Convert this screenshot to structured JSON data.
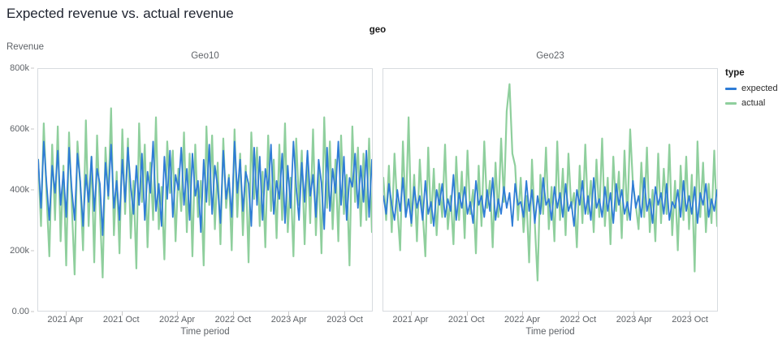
{
  "page": {
    "title": "Expected revenue vs. actual revenue"
  },
  "chart": {
    "facet_field": "geo",
    "y_axis_title": "Revenue",
    "x_axis_title": "Time period",
    "y_ticks": [
      "800k",
      "600k",
      "400k",
      "200k",
      "0.00"
    ],
    "legend": {
      "title": "type",
      "items": [
        {
          "label": "expected",
          "color": "#2e7cd6"
        },
        {
          "label": "actual",
          "color": "#8fcf9d"
        }
      ]
    }
  },
  "chart_data": {
    "type": "line",
    "title": "Expected revenue vs. actual revenue",
    "xlabel": "Time period",
    "ylabel": "Revenue",
    "ylim": [
      0,
      800000
    ],
    "values_unit": "thousands",
    "x_start": "2021-01",
    "x_end": "2023-12",
    "x_domain_months": 36,
    "x_tick_months": [
      3,
      9,
      15,
      21,
      27,
      33
    ],
    "x_tick_labels": [
      "2021 Apr",
      "2021 Oct",
      "2022 Apr",
      "2022 Oct",
      "2023 Apr",
      "2023 Oct"
    ],
    "grid": false,
    "legend_position": "right",
    "facets": [
      {
        "name": "Geo10",
        "series": [
          {
            "name": "expected",
            "color": "#2e7cd6",
            "width": 1.8,
            "values": [
              500,
              340,
              560,
              420,
              300,
              480,
              390,
              530,
              350,
              460,
              310,
              540,
              400,
              300,
              520,
              430,
              280,
              450,
              360,
              510,
              330,
              470,
              420,
              250,
              490,
              380,
              550,
              340,
              430,
              300,
              500,
              360,
              540,
              410,
              320,
              480,
              350,
              520,
              300,
              460,
              390,
              560,
              330,
              420,
              280,
              510,
              370,
              530,
              310,
              450,
              400,
              540,
              350,
              470,
              300,
              520,
              380,
              430,
              260,
              500,
              360,
              550,
              320,
              480,
              410,
              290,
              530,
              370,
              440,
              310,
              560,
              390,
              500,
              330,
              460,
              420,
              280,
              540,
              350,
              510,
              300,
              470,
              400,
              550,
              320,
              430,
              370,
              520,
              290,
              480,
              340,
              560,
              410,
              300,
              490,
              360,
              530,
              380,
              450,
              310,
              500,
              420,
              270,
              540,
              330,
              470,
              390,
              560,
              350,
              510,
              300,
              440,
              410,
              520,
              340,
              480,
              360,
              530,
              310,
              500
            ]
          },
          {
            "name": "actual",
            "color": "#8fcf9d",
            "width": 2.2,
            "values": [
              500,
              280,
              620,
              380,
              180,
              550,
              300,
              610,
              230,
              480,
              150,
              590,
              350,
              120,
              560,
              420,
              200,
              630,
              280,
              510,
              160,
              580,
              330,
              110,
              540,
              370,
              670,
              250,
              460,
              190,
              600,
              320,
              570,
              240,
              430,
              140,
              620,
              360,
              550,
              210,
              490,
              300,
              640,
              270,
              410,
              170,
              560,
              390,
              530,
              230,
              470,
              330,
              590,
              260,
              520,
              180,
              550,
              310,
              430,
              150,
              610,
              350,
              580,
              270,
              490,
              220,
              570,
              340,
              450,
              200,
              600,
              310,
              520,
              250,
              480,
              160,
              590,
              370,
              540,
              280,
              460,
              210,
              580,
              330,
              500,
              240,
              550,
              300,
              620,
              260,
              440,
              180,
              570,
              350,
              530,
              220,
              510,
              290,
              600,
              250,
              470,
              190,
              640,
              340,
              560,
              270,
              500,
              230,
              580,
              320,
              450,
              150,
              610,
              360,
              540,
              280,
              520,
              300,
              570,
              260
            ]
          }
        ]
      },
      {
        "name": "Geo23",
        "series": [
          {
            "name": "expected",
            "color": "#2e7cd6",
            "width": 1.8,
            "values": [
              380,
              320,
              420,
              350,
              300,
              400,
              330,
              440,
              310,
              370,
              290,
              410,
              340,
              380,
              300,
              430,
              320,
              360,
              280,
              400,
              350,
              420,
              310,
              370,
              330,
              450,
              300,
              390,
              340,
              410,
              320,
              360,
              290,
              430,
              350,
              380,
              310,
              400,
              330,
              440,
              300,
              370,
              320,
              410,
              340,
              390,
              280,
              420,
              350,
              360,
              310,
              430,
              330,
              400,
              290,
              380,
              320,
              440,
              350,
              370,
              300,
              410,
              340,
              390,
              310,
              420,
              330,
              360,
              280,
              400,
              350,
              430,
              320,
              380,
              300,
              440,
              340,
              370,
              310,
              410,
              330,
              390,
              290,
              420,
              350,
              400,
              320,
              360,
              300,
              430,
              340,
              380,
              310,
              440,
              330,
              370,
              290,
              410,
              350,
              390,
              320,
              420,
              300,
              360,
              340,
              400,
              310,
              430,
              330,
              380,
              320,
              410,
              290,
              390,
              350,
              420,
              310,
              370,
              330,
              400
            ]
          },
          {
            "name": "actual",
            "color": "#8fcf9d",
            "width": 2.2,
            "values": [
              440,
              300,
              480,
              260,
              520,
              340,
              200,
              560,
              310,
              640,
              280,
              450,
              230,
              500,
              330,
              180,
              540,
              290,
              470,
              250,
              420,
              310,
              550,
              270,
              380,
              220,
              510,
              300,
              460,
              240,
              530,
              320,
              400,
              190,
              480,
              280,
              560,
              340,
              430,
              210,
              490,
              310,
              570,
              360,
              660,
              750,
              520,
              480,
              300,
              440,
              260,
              380,
              160,
              500,
              290,
              100,
              450,
              320,
              540,
              270,
              410,
              230,
              560,
              300,
              470,
              250,
              520,
              340,
              390,
              210,
              480,
              290,
              550,
              320,
              430,
              260,
              500,
              310,
              570,
              280,
              440,
              220,
              510,
              330,
              460,
              240,
              530,
              300,
              600,
              420,
              350,
              270,
              490,
              310,
              540,
              260,
              400,
              230,
              520,
              290,
              470,
              320,
              550,
              250,
              430,
              200,
              480,
              300,
              510,
              270,
              450,
              130,
              560,
              310,
              490,
              260,
              420,
              290,
              530,
              280
            ]
          }
        ]
      }
    ]
  }
}
